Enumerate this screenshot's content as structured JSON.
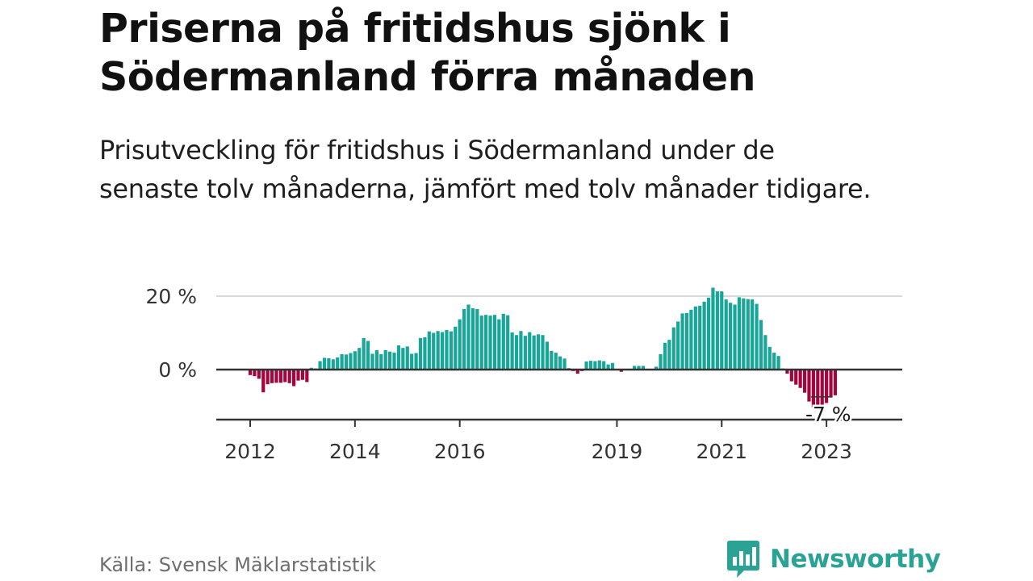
{
  "header": {
    "title": "Priserna på fritidshus sjönk i Södermanland förra månaden",
    "subtitle": "Prisutveckling för fritidshus i Södermanland under de senaste tolv månaderna, jämfört med tolv månader tidigare."
  },
  "footer": {
    "source": "Källa: Svensk Mäklarstatistik",
    "brand": "Newsworthy",
    "brand_icon": "bar-chart-speech-bubble-icon"
  },
  "colors": {
    "positive": "#17a697",
    "negative": "#a3063f",
    "axis": "#333333",
    "grid": "#d9d9d9",
    "brand": "#2aa395"
  },
  "chart_data": {
    "type": "bar",
    "title": "Priserna på fritidshus sjönk i Södermanland förra månaden",
    "subtitle": "Prisutveckling för fritidshus i Södermanland under de senaste tolv månaderna, jämfört med tolv månader tidigare.",
    "xlabel": "",
    "ylabel": "",
    "unit": "%",
    "ylim": [
      -14,
      24
    ],
    "y_ticks": [
      {
        "value": 0,
        "label": "0 %"
      },
      {
        "value": 20,
        "label": "20 %"
      }
    ],
    "x_ticks": [
      "2012",
      "2014",
      "2016",
      "2019",
      "2021",
      "2023"
    ],
    "tick_positions": [
      "2012-01",
      "2014-01",
      "2016-01",
      "2019-01",
      "2021-01",
      "2023-01"
    ],
    "grid": true,
    "last_value_label": "-7 %",
    "series": [
      {
        "values": [
          {
            "x": "2012-01",
            "y": -1.5
          },
          {
            "x": "2012-02",
            "y": -1.8
          },
          {
            "x": "2012-03",
            "y": -2.5
          },
          {
            "x": "2012-04",
            "y": -6.2
          },
          {
            "x": "2012-05",
            "y": -4.0
          },
          {
            "x": "2012-06",
            "y": -3.7
          },
          {
            "x": "2012-07",
            "y": -3.6
          },
          {
            "x": "2012-08",
            "y": -3.6
          },
          {
            "x": "2012-09",
            "y": -3.4
          },
          {
            "x": "2012-10",
            "y": -3.7
          },
          {
            "x": "2012-11",
            "y": -4.5
          },
          {
            "x": "2012-12",
            "y": -3.0
          },
          {
            "x": "2013-01",
            "y": -2.8
          },
          {
            "x": "2013-02",
            "y": -3.4
          },
          {
            "x": "2013-03",
            "y": 0.5
          },
          {
            "x": "2013-04",
            "y": 0.3
          },
          {
            "x": "2013-05",
            "y": 2.3
          },
          {
            "x": "2013-06",
            "y": 3.2
          },
          {
            "x": "2013-07",
            "y": 3.1
          },
          {
            "x": "2013-08",
            "y": 2.8
          },
          {
            "x": "2013-09",
            "y": 3.3
          },
          {
            "x": "2013-10",
            "y": 4.2
          },
          {
            "x": "2013-11",
            "y": 4.1
          },
          {
            "x": "2013-12",
            "y": 4.5
          },
          {
            "x": "2014-01",
            "y": 5.0
          },
          {
            "x": "2014-02",
            "y": 5.9
          },
          {
            "x": "2014-03",
            "y": 8.6
          },
          {
            "x": "2014-04",
            "y": 7.8
          },
          {
            "x": "2014-05",
            "y": 4.3
          },
          {
            "x": "2014-06",
            "y": 5.3
          },
          {
            "x": "2014-07",
            "y": 4.2
          },
          {
            "x": "2014-08",
            "y": 5.3
          },
          {
            "x": "2014-09",
            "y": 4.9
          },
          {
            "x": "2014-10",
            "y": 4.6
          },
          {
            "x": "2014-11",
            "y": 6.6
          },
          {
            "x": "2014-12",
            "y": 5.9
          },
          {
            "x": "2015-01",
            "y": 6.3
          },
          {
            "x": "2015-02",
            "y": 4.3
          },
          {
            "x": "2015-03",
            "y": 4.5
          },
          {
            "x": "2015-04",
            "y": 8.6
          },
          {
            "x": "2015-05",
            "y": 8.8
          },
          {
            "x": "2015-06",
            "y": 10.4
          },
          {
            "x": "2015-07",
            "y": 10.0
          },
          {
            "x": "2015-08",
            "y": 10.5
          },
          {
            "x": "2015-09",
            "y": 10.2
          },
          {
            "x": "2015-10",
            "y": 10.8
          },
          {
            "x": "2015-11",
            "y": 10.4
          },
          {
            "x": "2015-12",
            "y": 11.7
          },
          {
            "x": "2016-01",
            "y": 13.7
          },
          {
            "x": "2016-02",
            "y": 16.5
          },
          {
            "x": "2016-03",
            "y": 17.7
          },
          {
            "x": "2016-04",
            "y": 16.7
          },
          {
            "x": "2016-05",
            "y": 16.5
          },
          {
            "x": "2016-06",
            "y": 14.7
          },
          {
            "x": "2016-07",
            "y": 14.9
          },
          {
            "x": "2016-08",
            "y": 14.7
          },
          {
            "x": "2016-09",
            "y": 14.9
          },
          {
            "x": "2016-10",
            "y": 13.7
          },
          {
            "x": "2016-11",
            "y": 15.2
          },
          {
            "x": "2016-12",
            "y": 14.8
          },
          {
            "x": "2017-01",
            "y": 10.1
          },
          {
            "x": "2017-02",
            "y": 9.4
          },
          {
            "x": "2017-03",
            "y": 10.5
          },
          {
            "x": "2017-04",
            "y": 9.2
          },
          {
            "x": "2017-05",
            "y": 10.2
          },
          {
            "x": "2017-06",
            "y": 9.3
          },
          {
            "x": "2017-07",
            "y": 9.6
          },
          {
            "x": "2017-08",
            "y": 9.4
          },
          {
            "x": "2017-09",
            "y": 7.6
          },
          {
            "x": "2017-10",
            "y": 5.1
          },
          {
            "x": "2017-11",
            "y": 4.6
          },
          {
            "x": "2017-12",
            "y": 3.6
          },
          {
            "x": "2018-01",
            "y": 3.0
          },
          {
            "x": "2018-02",
            "y": 0.4
          },
          {
            "x": "2018-03",
            "y": -0.4
          },
          {
            "x": "2018-04",
            "y": -1.1
          },
          {
            "x": "2018-05",
            "y": -0.4
          },
          {
            "x": "2018-06",
            "y": 2.2
          },
          {
            "x": "2018-07",
            "y": 2.4
          },
          {
            "x": "2018-08",
            "y": 2.3
          },
          {
            "x": "2018-09",
            "y": 2.5
          },
          {
            "x": "2018-10",
            "y": 2.3
          },
          {
            "x": "2018-11",
            "y": 1.4
          },
          {
            "x": "2018-12",
            "y": 1.8
          },
          {
            "x": "2019-01",
            "y": 0.2
          },
          {
            "x": "2019-02",
            "y": -0.6
          },
          {
            "x": "2019-03",
            "y": 0.1
          },
          {
            "x": "2019-04",
            "y": 0.2
          },
          {
            "x": "2019-05",
            "y": 1.0
          },
          {
            "x": "2019-06",
            "y": 1.0
          },
          {
            "x": "2019-07",
            "y": 1.0
          },
          {
            "x": "2019-08",
            "y": 0.1
          },
          {
            "x": "2019-09",
            "y": 0.2
          },
          {
            "x": "2019-10",
            "y": 0.8
          },
          {
            "x": "2019-11",
            "y": 4.2
          },
          {
            "x": "2019-12",
            "y": 7.3
          },
          {
            "x": "2020-01",
            "y": 8.1
          },
          {
            "x": "2020-02",
            "y": 11.5
          },
          {
            "x": "2020-03",
            "y": 13.1
          },
          {
            "x": "2020-04",
            "y": 15.3
          },
          {
            "x": "2020-05",
            "y": 15.4
          },
          {
            "x": "2020-06",
            "y": 16.3
          },
          {
            "x": "2020-07",
            "y": 17.2
          },
          {
            "x": "2020-08",
            "y": 17.4
          },
          {
            "x": "2020-09",
            "y": 18.5
          },
          {
            "x": "2020-10",
            "y": 19.6
          },
          {
            "x": "2020-11",
            "y": 22.3
          },
          {
            "x": "2020-12",
            "y": 21.3
          },
          {
            "x": "2021-01",
            "y": 21.3
          },
          {
            "x": "2021-02",
            "y": 19.1
          },
          {
            "x": "2021-03",
            "y": 18.2
          },
          {
            "x": "2021-04",
            "y": 17.7
          },
          {
            "x": "2021-05",
            "y": 19.7
          },
          {
            "x": "2021-06",
            "y": 19.4
          },
          {
            "x": "2021-07",
            "y": 19.2
          },
          {
            "x": "2021-08",
            "y": 19.1
          },
          {
            "x": "2021-09",
            "y": 17.9
          },
          {
            "x": "2021-10",
            "y": 13.5
          },
          {
            "x": "2021-11",
            "y": 9.4
          },
          {
            "x": "2021-12",
            "y": 6.2
          },
          {
            "x": "2022-01",
            "y": 4.6
          },
          {
            "x": "2022-02",
            "y": 3.7
          },
          {
            "x": "2022-03",
            "y": 0.3
          },
          {
            "x": "2022-04",
            "y": -1.1
          },
          {
            "x": "2022-05",
            "y": -3.2
          },
          {
            "x": "2022-06",
            "y": -4.1
          },
          {
            "x": "2022-07",
            "y": -5.0
          },
          {
            "x": "2022-08",
            "y": -6.3
          },
          {
            "x": "2022-09",
            "y": -8.7
          },
          {
            "x": "2022-10",
            "y": -10.2
          },
          {
            "x": "2022-11",
            "y": -10.8
          },
          {
            "x": "2022-12",
            "y": -10.6
          },
          {
            "x": "2023-01",
            "y": -9.1
          },
          {
            "x": "2023-02",
            "y": -7.6
          },
          {
            "x": "2023-03",
            "y": -7.0
          }
        ]
      }
    ]
  }
}
